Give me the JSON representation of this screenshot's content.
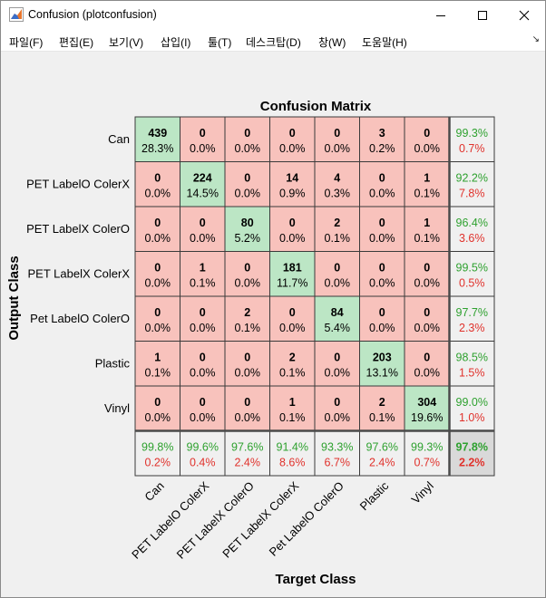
{
  "window": {
    "title": "Confusion (plotconfusion)",
    "icon": "matlab-figure-icon",
    "buttons": [
      "minimize",
      "maximize",
      "close"
    ]
  },
  "menu": [
    "파일(F)",
    "편집(E)",
    "보기(V)",
    "삽입(I)",
    "툴(T)",
    "데스크탑(D)",
    "창(W)",
    "도움말(H)"
  ],
  "menu_corner_glyph": "↘",
  "colors": {
    "correct_fill": "#bce6c5",
    "incorrect_fill": "#f8c2bc",
    "summary_fill": "#f0f0f0",
    "total_fill": "#d9d9d9",
    "green_text": "#2ea12f",
    "red_text": "#e0322c"
  },
  "chart_data": {
    "type": "heatmap",
    "title": "Confusion Matrix",
    "xlabel": "Target Class",
    "ylabel": "Output Class",
    "classes": [
      "Can",
      "PET LabelO ColerX",
      "PET LabelX ColerO",
      "PET LabelX ColerX",
      "Pet LabelO ColerO",
      "Plastic",
      "Vinyl"
    ],
    "x_tick_labels": [
      "Can",
      "PET LabelO ColerX",
      "PET LabelX ColerO",
      "PET LabelX ColerX",
      "Pet LabelO ColerO",
      "Plastic",
      "Vinyl"
    ],
    "y_tick_labels": [
      "Can",
      "PET LabelO ColerX",
      "PET LabelX ColerO",
      "PET LabelX ColerX",
      "Pet LabelO ColerO",
      "Plastic",
      "Vinyl"
    ],
    "counts": [
      [
        439,
        0,
        0,
        0,
        0,
        3,
        0
      ],
      [
        0,
        224,
        0,
        14,
        4,
        0,
        1
      ],
      [
        0,
        0,
        80,
        0,
        2,
        0,
        1
      ],
      [
        0,
        1,
        0,
        181,
        0,
        0,
        0
      ],
      [
        0,
        0,
        2,
        0,
        84,
        0,
        0
      ],
      [
        1,
        0,
        0,
        2,
        0,
        203,
        0
      ],
      [
        0,
        0,
        0,
        1,
        0,
        2,
        304
      ]
    ],
    "percents": [
      [
        "28.3%",
        "0.0%",
        "0.0%",
        "0.0%",
        "0.0%",
        "0.2%",
        "0.0%"
      ],
      [
        "0.0%",
        "14.5%",
        "0.0%",
        "0.9%",
        "0.3%",
        "0.0%",
        "0.1%"
      ],
      [
        "0.0%",
        "0.0%",
        "5.2%",
        "0.0%",
        "0.1%",
        "0.0%",
        "0.1%"
      ],
      [
        "0.0%",
        "0.1%",
        "0.0%",
        "11.7%",
        "0.0%",
        "0.0%",
        "0.0%"
      ],
      [
        "0.0%",
        "0.0%",
        "0.1%",
        "0.0%",
        "5.4%",
        "0.0%",
        "0.0%"
      ],
      [
        "0.1%",
        "0.0%",
        "0.0%",
        "0.1%",
        "0.0%",
        "13.1%",
        "0.0%"
      ],
      [
        "0.0%",
        "0.0%",
        "0.0%",
        "0.1%",
        "0.0%",
        "0.1%",
        "19.6%"
      ]
    ],
    "row_summary": [
      {
        "correct": "99.3%",
        "wrong": "0.7%"
      },
      {
        "correct": "92.2%",
        "wrong": "7.8%"
      },
      {
        "correct": "96.4%",
        "wrong": "3.6%"
      },
      {
        "correct": "99.5%",
        "wrong": "0.5%"
      },
      {
        "correct": "97.7%",
        "wrong": "2.3%"
      },
      {
        "correct": "98.5%",
        "wrong": "1.5%"
      },
      {
        "correct": "99.0%",
        "wrong": "1.0%"
      }
    ],
    "col_summary": [
      {
        "correct": "99.8%",
        "wrong": "0.2%"
      },
      {
        "correct": "99.6%",
        "wrong": "0.4%"
      },
      {
        "correct": "97.6%",
        "wrong": "2.4%"
      },
      {
        "correct": "91.4%",
        "wrong": "8.6%"
      },
      {
        "correct": "93.3%",
        "wrong": "6.7%"
      },
      {
        "correct": "97.6%",
        "wrong": "2.4%"
      },
      {
        "correct": "99.3%",
        "wrong": "0.7%"
      }
    ],
    "total": {
      "correct": "97.8%",
      "wrong": "2.2%"
    },
    "grid": true,
    "legend": "none"
  }
}
